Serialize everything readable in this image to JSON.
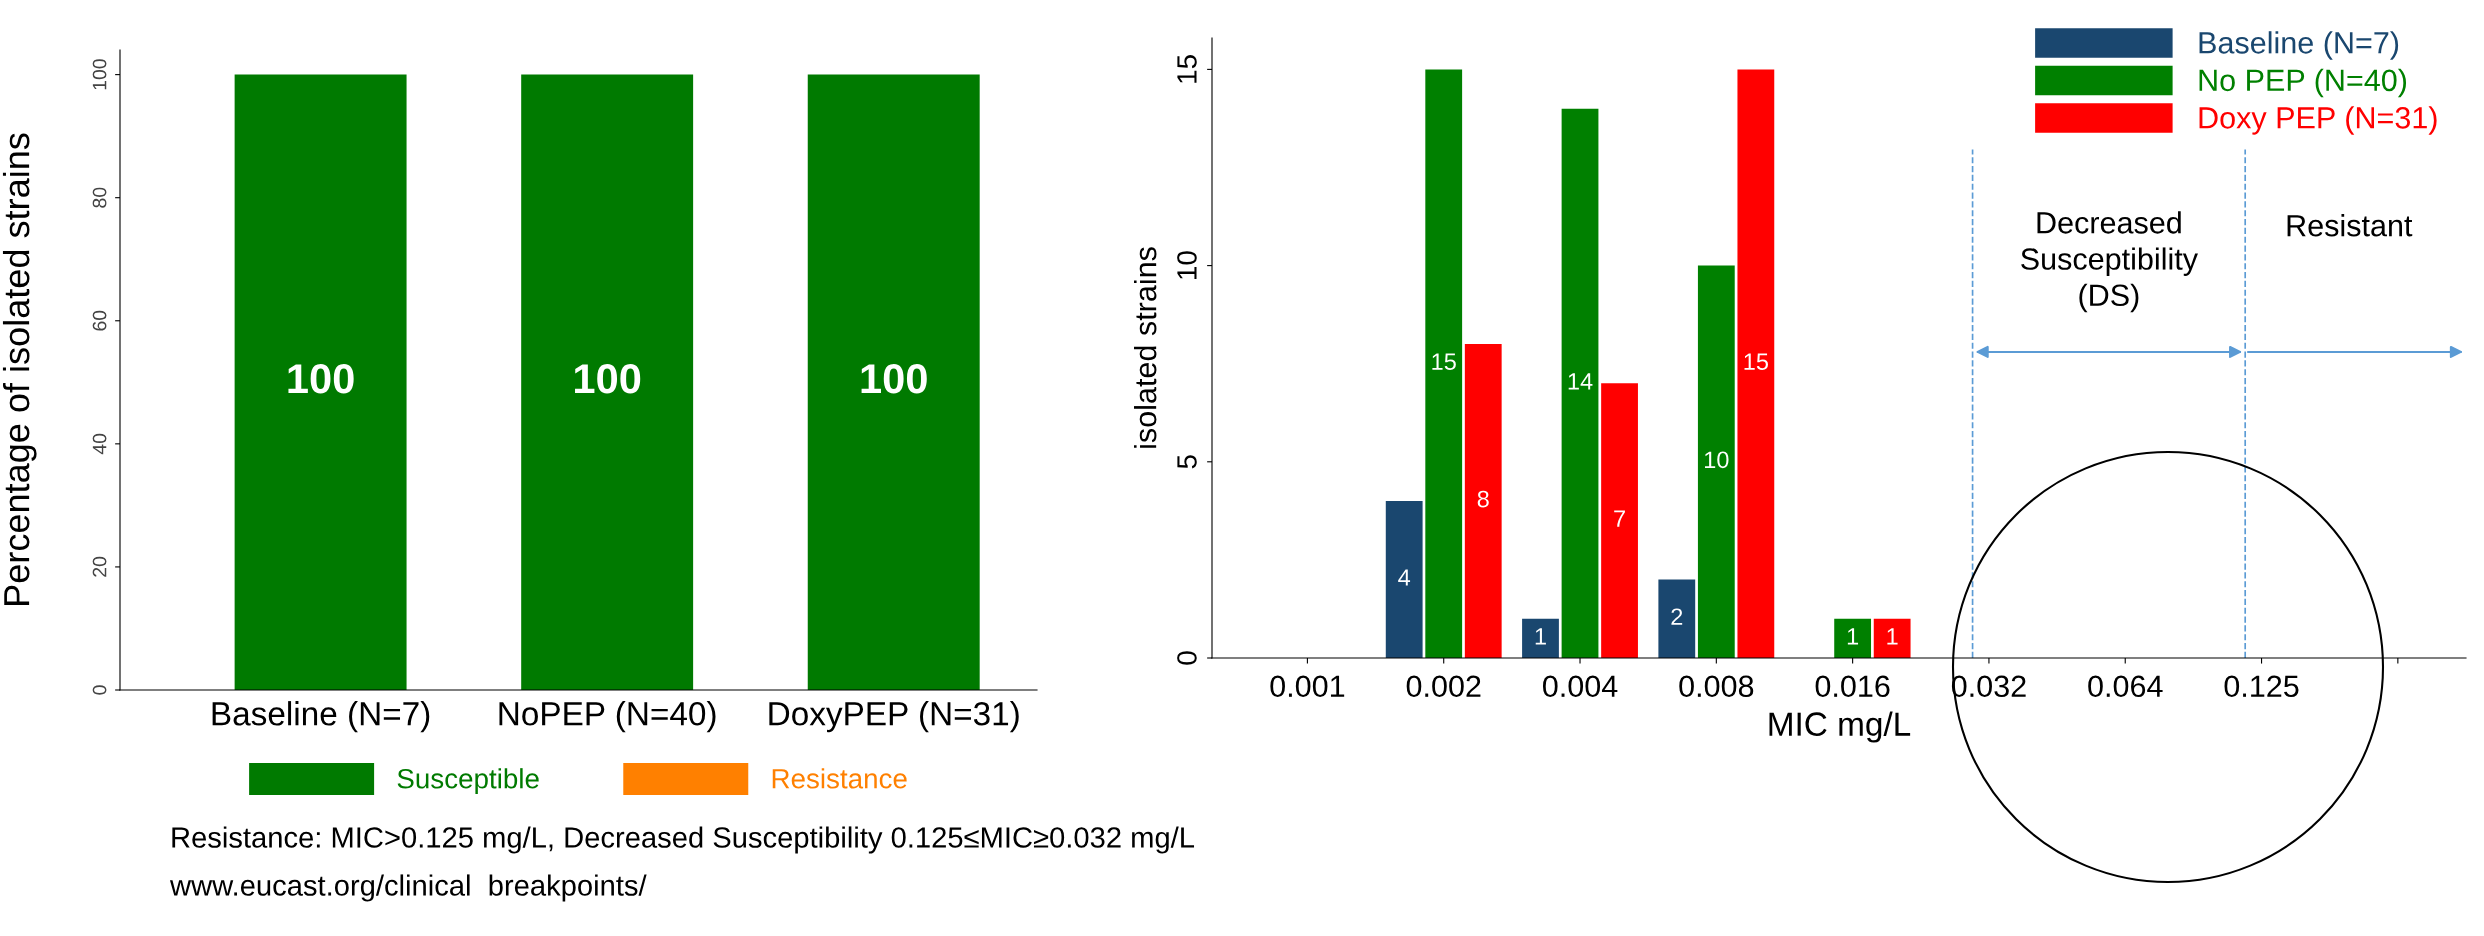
{
  "chart_data": [
    {
      "type": "bar",
      "stacked": true,
      "ylabel": "Percentage of isolated strains",
      "categories": [
        "Baseline (N=7)",
        "NoPEP (N=40)",
        "DoxyPEP (N=31)"
      ],
      "series": [
        {
          "name": "Susceptible",
          "color": "#007a00",
          "values": [
            100,
            100,
            100
          ],
          "value_labels": [
            "100",
            "100",
            "100"
          ]
        },
        {
          "name": "Resistance",
          "color": "#ff8000",
          "values": [
            0,
            0,
            0
          ]
        }
      ],
      "ylim": [
        0,
        104
      ],
      "yticks": [
        0,
        20,
        40,
        60,
        80,
        100
      ],
      "grid": false,
      "legend": "bottom",
      "annotations": [
        "Resistance: MIC>0.125 mg/L, Decreased Susceptibility 0.125≤MIC≥0.032 mg/L",
        "www.eucast.org/clinical  breakpoints/"
      ]
    },
    {
      "type": "bar",
      "xlabel": "MIC mg/L",
      "ylabel": "isolated strains",
      "categories": [
        "0.001",
        "0.002",
        "0.004",
        "0.008",
        "0.016",
        "0.032",
        "0.064",
        "0.125",
        null
      ],
      "series": [
        {
          "name": "Baseline (N=7)",
          "color": "#1a476f",
          "values": [
            0,
            4,
            1,
            2,
            0,
            0,
            0,
            0,
            null
          ],
          "value_labels": [
            null,
            "4",
            "1",
            "2",
            null,
            null,
            null,
            null,
            null
          ]
        },
        {
          "name": "No PEP (N=40)",
          "color": "#008000",
          "values": [
            0,
            15,
            14,
            10,
            1,
            0,
            0,
            0,
            null
          ],
          "value_labels": [
            null,
            "15",
            "14",
            "10",
            "1",
            null,
            null,
            null,
            null
          ]
        },
        {
          "name": "Doxy PEP (N=31)",
          "color": "#ff0000",
          "values": [
            0,
            8,
            7,
            15,
            1,
            0,
            0,
            0,
            null
          ],
          "value_labels": [
            null,
            "8",
            "7",
            "15",
            "1",
            null,
            null,
            null,
            null
          ]
        }
      ],
      "ylim": [
        0,
        15.8
      ],
      "yticks": [
        0,
        5,
        10,
        15
      ],
      "grid": false,
      "legend": "top right",
      "ref_lines": [
        {
          "axis": "x",
          "value": "0.032",
          "color": "#5b9bd5",
          "line_style": "dashed"
        },
        {
          "axis": "x",
          "value": "0.125",
          "color": "#5b9bd5",
          "line_style": "dashed"
        }
      ],
      "annotations": [
        "Decreased\nSusceptibility\n(DS)",
        "Resistant"
      ]
    }
  ]
}
